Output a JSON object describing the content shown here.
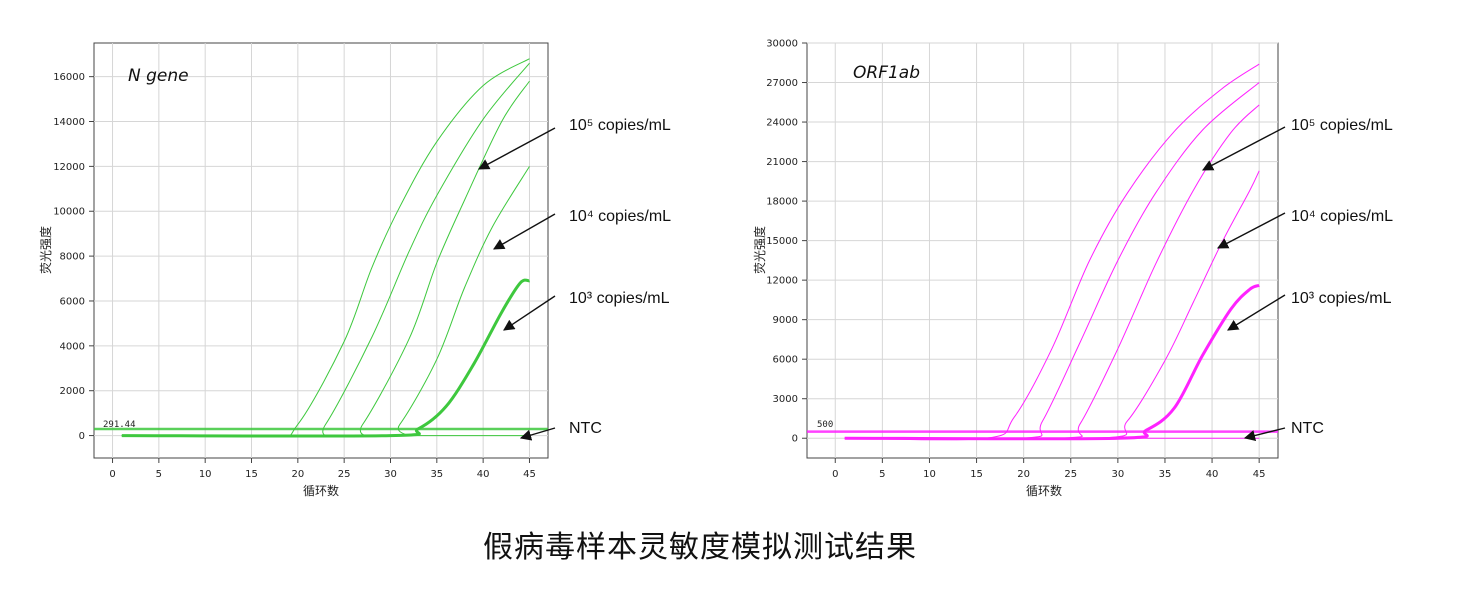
{
  "caption": "假病毒样本灵敏度模拟测试结果",
  "chart_data": [
    {
      "type": "line",
      "title": "N gene",
      "xlabel": "循环数",
      "ylabel": "荧光强度",
      "xlim": [
        -2,
        47
      ],
      "ylim": [
        -1000,
        17500
      ],
      "xticks": [
        0,
        5,
        10,
        15,
        20,
        25,
        30,
        35,
        40,
        45
      ],
      "yticks": [
        0,
        2000,
        4000,
        6000,
        8000,
        10000,
        12000,
        14000,
        16000
      ],
      "grid": true,
      "color": "#3ec83e",
      "threshold": 291.44,
      "threshold_label": "291.44",
      "series": [
        {
          "x": [
            1,
            17,
            20,
            25,
            28,
            31,
            35,
            40,
            45
          ],
          "y": [
            0,
            0,
            500,
            4200,
            7500,
            10200,
            13100,
            15600,
            16800
          ]
        },
        {
          "x": [
            1,
            21,
            23,
            28,
            32,
            35,
            40,
            45
          ],
          "y": [
            0,
            0,
            500,
            4400,
            8200,
            10700,
            14100,
            16600
          ]
        },
        {
          "x": [
            1,
            25,
            27,
            32,
            35,
            38,
            42,
            45
          ],
          "y": [
            0,
            0,
            500,
            4300,
            7700,
            10500,
            14000,
            15800
          ]
        },
        {
          "x": [
            1,
            29,
            31,
            35,
            38,
            41,
            45
          ],
          "y": [
            0,
            0,
            500,
            3400,
            6600,
            9300,
            12000
          ]
        },
        {
          "x": [
            1,
            30,
            33,
            36,
            39,
            42,
            44,
            45
          ],
          "y": [
            0,
            0,
            300,
            1300,
            3200,
            5500,
            6800,
            6900
          ],
          "bold": true
        },
        {
          "x": [
            1,
            45
          ],
          "y": [
            0,
            0
          ],
          "note": "NTC"
        }
      ],
      "annotations": [
        {
          "text": "10⁵ copies/mL"
        },
        {
          "text": "10⁴ copies/mL"
        },
        {
          "text": "10³ copies/mL"
        },
        {
          "text": "NTC"
        }
      ]
    },
    {
      "type": "line",
      "title": "ORF1ab",
      "xlabel": "循环数",
      "ylabel": "荧光强度",
      "xlim": [
        -3,
        47
      ],
      "ylim": [
        -1500,
        30000
      ],
      "xticks": [
        0,
        5,
        10,
        15,
        20,
        25,
        30,
        35,
        40,
        45
      ],
      "yticks": [
        0,
        3000,
        6000,
        9000,
        12000,
        15000,
        18000,
        21000,
        24000,
        27000,
        30000
      ],
      "grid": true,
      "color": "#ff22ff",
      "threshold": 500,
      "threshold_label": "500",
      "series": [
        {
          "x": [
            1,
            16,
            19,
            23,
            27,
            31,
            36,
            41,
            45
          ],
          "y": [
            0,
            0,
            1600,
            6800,
            13500,
            18600,
            23300,
            26500,
            28400
          ]
        },
        {
          "x": [
            1,
            20,
            22,
            26,
            30,
            34,
            39,
            45
          ],
          "y": [
            0,
            0,
            1300,
            7300,
            13500,
            18600,
            23400,
            27000
          ]
        },
        {
          "x": [
            1,
            24,
            26,
            30,
            34,
            38,
            42,
            45
          ],
          "y": [
            0,
            0,
            1100,
            6800,
            13200,
            18800,
            23200,
            25300
          ]
        },
        {
          "x": [
            1,
            28,
            31,
            35,
            38,
            41,
            44,
            45
          ],
          "y": [
            0,
            0,
            1300,
            5900,
            10300,
            14800,
            18800,
            20300
          ]
        },
        {
          "x": [
            1,
            30,
            33,
            36,
            39,
            42,
            44,
            45
          ],
          "y": [
            0,
            0,
            600,
            2300,
            6300,
            9800,
            11300,
            11600
          ],
          "bold": true
        },
        {
          "x": [
            1,
            45
          ],
          "y": [
            0,
            0
          ],
          "note": "NTC"
        }
      ],
      "annotations": [
        {
          "text": "10⁵ copies/mL"
        },
        {
          "text": "10⁴ copies/mL"
        },
        {
          "text": "10³ copies/mL"
        },
        {
          "text": "NTC"
        }
      ]
    }
  ]
}
